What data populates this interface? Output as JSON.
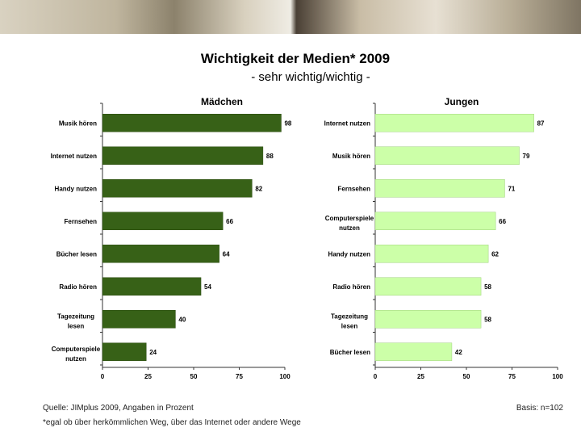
{
  "title": "Wichtigkeit der Medien* 2009",
  "subtitle": "- sehr wichtig/wichtig -",
  "footer": {
    "source": "Quelle: JIMplus 2009, Angaben in Prozent",
    "basis": "Basis: n=102",
    "footnote": "*egal ob über herkömmlichen Weg, über das Internet oder andere Wege"
  },
  "chart_data": [
    {
      "type": "bar",
      "orientation": "horizontal",
      "title": "Mädchen",
      "categories": [
        "Musik hören",
        "Internet nutzen",
        "Handy nutzen",
        "Fernsehen",
        "Bücher lesen",
        "Radio hören",
        "Tagezeitung lesen",
        "Computerspiele nutzen"
      ],
      "values": [
        98,
        88,
        82,
        66,
        64,
        54,
        40,
        24
      ],
      "xlim": [
        0,
        100
      ],
      "ticks": [
        0,
        25,
        50,
        75,
        100
      ],
      "color": "#376117"
    },
    {
      "type": "bar",
      "orientation": "horizontal",
      "title": "Jungen",
      "categories": [
        "Internet nutzen",
        "Musik hören",
        "Fernsehen",
        "Computerspiele nutzen",
        "Handy nutzen",
        "Radio hören",
        "Tagezeitung lesen",
        "Bücher lesen"
      ],
      "values": [
        87,
        79,
        71,
        66,
        62,
        58,
        58,
        42
      ],
      "xlim": [
        0,
        100
      ],
      "ticks": [
        0,
        25,
        50,
        75,
        100
      ],
      "color": "#ccffa8"
    }
  ]
}
